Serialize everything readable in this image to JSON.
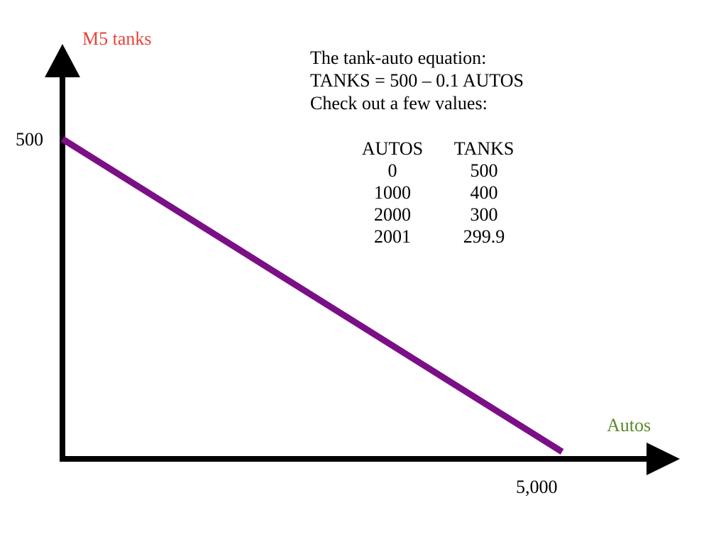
{
  "chart_data": {
    "type": "line",
    "title": "",
    "xlabel": "Autos",
    "ylabel": "M5 tanks",
    "xlim": [
      0,
      5000
    ],
    "ylim": [
      0,
      500
    ],
    "x_tick_labels": [
      {
        "value": 5000,
        "label": "5,000"
      }
    ],
    "y_tick_labels": [
      {
        "value": 500,
        "label": "500"
      }
    ],
    "grid": false,
    "series": [
      {
        "x": [
          0,
          5000
        ],
        "y": [
          500,
          0
        ]
      }
    ],
    "colors": {
      "line": "#7b0f86",
      "axes": "#000000",
      "ylabel": "#e8413a",
      "xlabel": "#5a8a2b"
    }
  },
  "annotation": {
    "lines": [
      "The tank-auto equation:",
      "TANKS = 500 – 0.1 AUTOS",
      "Check out a few values:"
    ],
    "table": {
      "headers": [
        "AUTOS",
        "TANKS"
      ],
      "rows": [
        [
          "0",
          "500"
        ],
        [
          "1000",
          "400"
        ],
        [
          "2000",
          "300"
        ],
        [
          "2001",
          "299.9"
        ]
      ]
    }
  }
}
